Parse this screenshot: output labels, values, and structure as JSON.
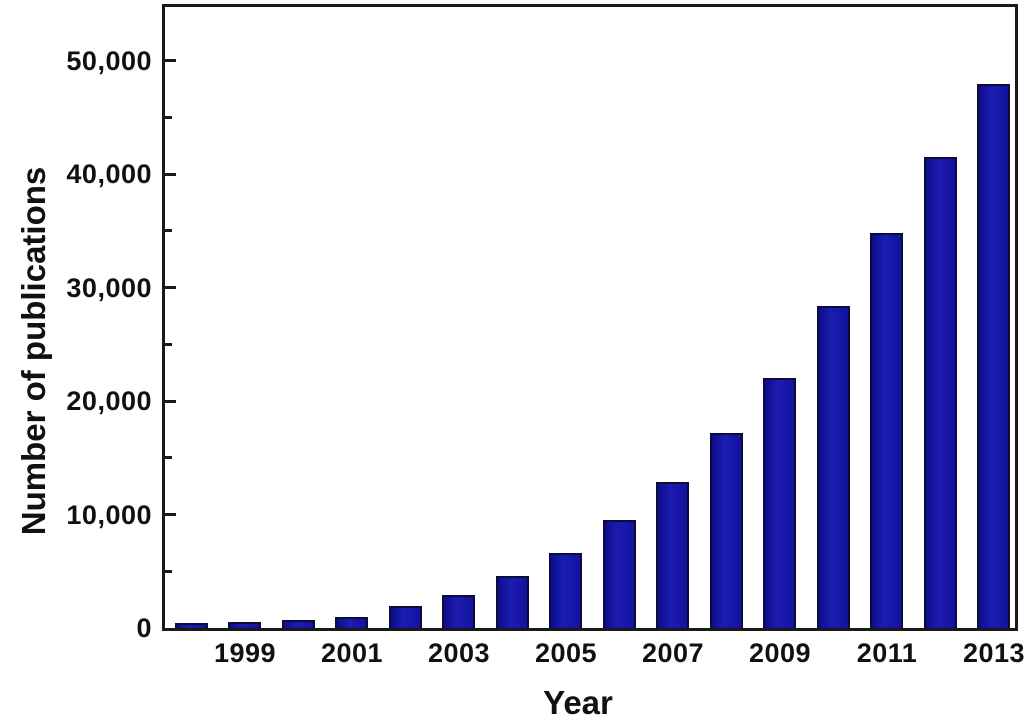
{
  "chart_data": {
    "type": "bar",
    "title": "",
    "xlabel": "Year",
    "ylabel": "Number of publications",
    "categories": [
      "1998",
      "1999",
      "2000",
      "2001",
      "2002",
      "2003",
      "2004",
      "2005",
      "2006",
      "2007",
      "2008",
      "2009",
      "2010",
      "2011",
      "2012",
      "2013"
    ],
    "values": [
      450,
      550,
      700,
      1000,
      1900,
      2950,
      4550,
      6600,
      9500,
      12900,
      17150,
      22000,
      28400,
      34800,
      41500,
      47900
    ],
    "x_tick_labels": [
      "1999",
      "2001",
      "2003",
      "2005",
      "2007",
      "2009",
      "2011",
      "2013"
    ],
    "x_tick_years": [
      1999,
      2001,
      2003,
      2005,
      2007,
      2009,
      2011,
      2013
    ],
    "y_tick_values": [
      0,
      10000,
      20000,
      30000,
      40000,
      50000
    ],
    "y_tick_labels": [
      "0",
      "10,000",
      "20,000",
      "30,000",
      "40,000",
      "50,000"
    ],
    "y_minor_tick_values": [
      5000,
      15000,
      25000,
      35000,
      45000
    ],
    "ylim": [
      0,
      54700
    ],
    "grid": false,
    "legend": null,
    "tick_direction": "in",
    "bar_color": "#12129d",
    "bar_border_color": "#0c0c3a",
    "axis_color": "#1a1a1a",
    "background_color": "#ffffff"
  }
}
